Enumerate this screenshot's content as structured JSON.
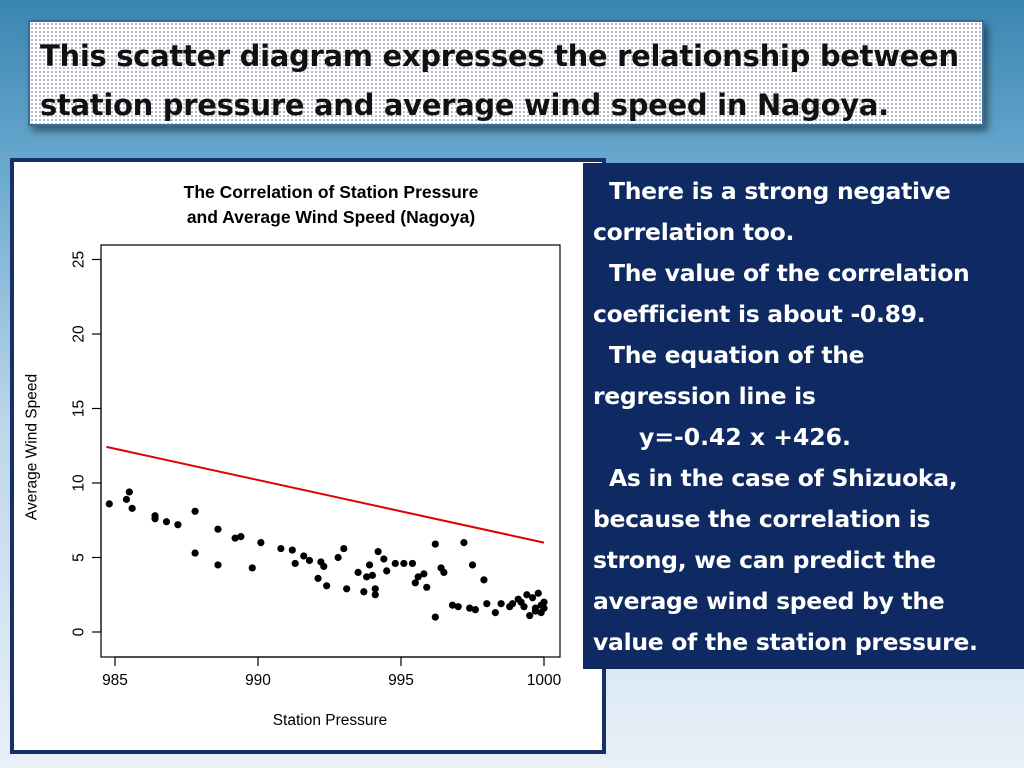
{
  "slide": {
    "title": "This scatter diagram expresses the relationship between station pressure and average wind speed in Nagoya.",
    "title_lines": [
      "This scatter diagram expresses the relationship between",
      "station pressure and average wind speed in Nagoya."
    ],
    "paragraphs": [
      [
        "There is a strong negative",
        "correlation too."
      ],
      [
        "The value of the correlation",
        "coefficient is about  -0.89."
      ],
      [
        "The equation of the",
        "regression line is"
      ]
    ],
    "equation": "y=-0.42 x +426.",
    "paragraph_last": [
      "As in the case of Shizuoka,",
      "because the correlation is",
      "strong, we can predict the",
      "average wind speed by the",
      "value of the station pressure."
    ],
    "colors": {
      "panel_bg": "#0f2a62",
      "frame_border": "#17306a",
      "points": "#000000",
      "regression_line": "#e00000"
    }
  },
  "chart_data": {
    "type": "scatter",
    "title_lines": [
      "The Correlation of Station Pressure",
      "and Average Wind Speed (Nagoya)"
    ],
    "xlabel": "Station Pressure",
    "ylabel": "Average Wind Speed",
    "xlim": [
      984.6,
      1000.2
    ],
    "ylim": [
      0,
      25
    ],
    "xticks": [
      985,
      990,
      995,
      1000
    ],
    "yticks": [
      0,
      5,
      10,
      15,
      20,
      25
    ],
    "regression": {
      "slope": -0.42,
      "intercept": 426,
      "x_range": [
        984.7,
        1000
      ]
    },
    "points": [
      [
        984.8,
        8.6
      ],
      [
        985.4,
        8.9
      ],
      [
        985.5,
        9.4
      ],
      [
        985.6,
        8.3
      ],
      [
        986.4,
        7.8
      ],
      [
        986.4,
        7.6
      ],
      [
        986.8,
        7.4
      ],
      [
        987.2,
        7.2
      ],
      [
        987.8,
        8.1
      ],
      [
        987.8,
        5.3
      ],
      [
        988.6,
        6.9
      ],
      [
        988.6,
        4.5
      ],
      [
        989.2,
        6.3
      ],
      [
        989.4,
        6.4
      ],
      [
        989.8,
        4.3
      ],
      [
        990.1,
        6.0
      ],
      [
        990.8,
        5.6
      ],
      [
        991.2,
        5.5
      ],
      [
        991.3,
        4.6
      ],
      [
        991.6,
        5.1
      ],
      [
        991.8,
        4.8
      ],
      [
        992.1,
        3.6
      ],
      [
        992.2,
        4.7
      ],
      [
        992.3,
        4.4
      ],
      [
        992.4,
        3.1
      ],
      [
        992.8,
        5.0
      ],
      [
        993.0,
        5.6
      ],
      [
        993.1,
        2.9
      ],
      [
        993.5,
        4.0
      ],
      [
        993.7,
        2.7
      ],
      [
        993.8,
        3.7
      ],
      [
        993.9,
        4.5
      ],
      [
        994.0,
        3.8
      ],
      [
        994.1,
        2.9
      ],
      [
        994.1,
        2.5
      ],
      [
        994.2,
        5.4
      ],
      [
        994.4,
        4.9
      ],
      [
        994.5,
        4.1
      ],
      [
        994.8,
        4.6
      ],
      [
        995.1,
        4.6
      ],
      [
        995.4,
        4.6
      ],
      [
        995.5,
        3.3
      ],
      [
        995.6,
        3.7
      ],
      [
        995.8,
        3.9
      ],
      [
        995.9,
        3.0
      ],
      [
        996.2,
        1.0
      ],
      [
        996.2,
        5.9
      ],
      [
        996.4,
        4.3
      ],
      [
        996.5,
        4.0
      ],
      [
        996.8,
        1.8
      ],
      [
        997.0,
        1.7
      ],
      [
        997.2,
        6.0
      ],
      [
        997.4,
        1.6
      ],
      [
        997.5,
        4.5
      ],
      [
        997.6,
        1.5
      ],
      [
        997.9,
        3.5
      ],
      [
        998.0,
        1.9
      ],
      [
        998.3,
        1.3
      ],
      [
        998.5,
        1.9
      ],
      [
        998.8,
        1.7
      ],
      [
        998.9,
        1.9
      ],
      [
        999.1,
        2.2
      ],
      [
        999.2,
        2.0
      ],
      [
        999.3,
        1.7
      ],
      [
        999.4,
        2.5
      ],
      [
        999.5,
        1.1
      ],
      [
        999.6,
        2.3
      ],
      [
        999.7,
        1.4
      ],
      [
        999.7,
        1.6
      ],
      [
        999.8,
        2.6
      ],
      [
        999.9,
        1.8
      ],
      [
        1000.0,
        1.6
      ],
      [
        1000.0,
        2.0
      ],
      [
        999.9,
        1.3
      ]
    ]
  }
}
